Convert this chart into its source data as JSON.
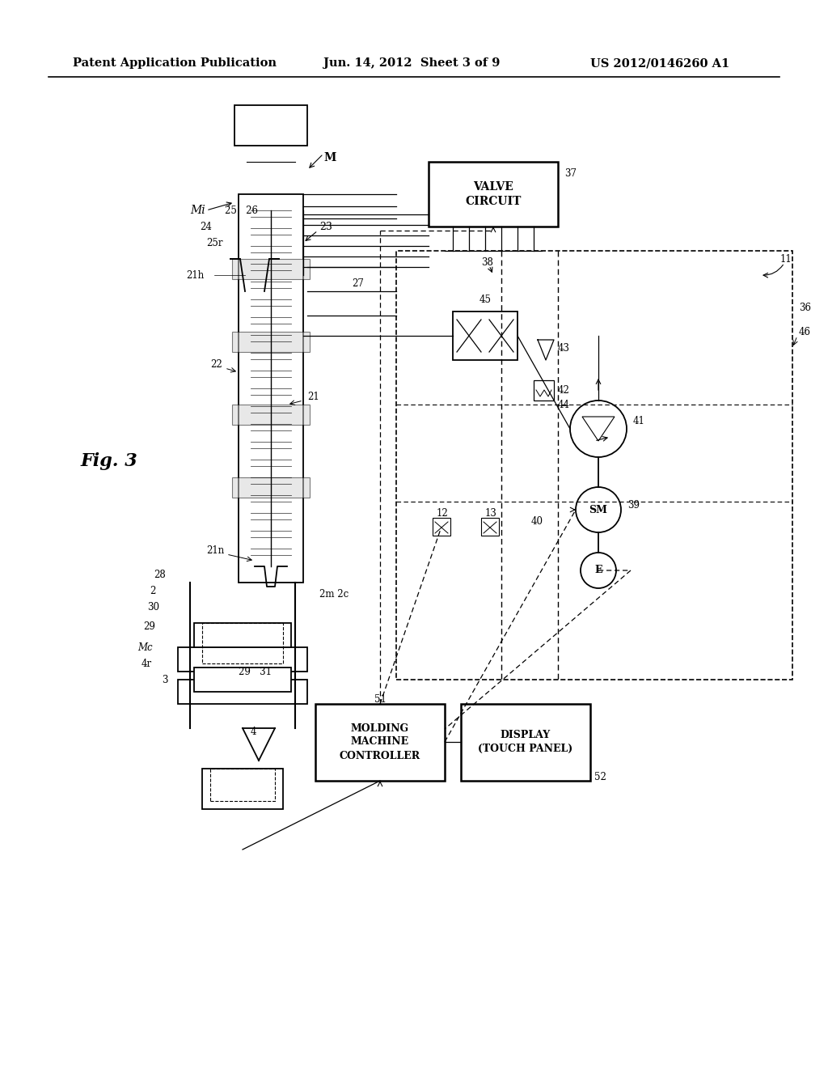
{
  "bg_color": "#ffffff",
  "header_left": "Patent Application Publication",
  "header_center": "Jun. 14, 2012  Sheet 3 of 9",
  "header_right": "US 2012/0146260 A1",
  "fig_label": "Fig. 3",
  "title_fontsize": 11,
  "header_fontsize": 10.5
}
